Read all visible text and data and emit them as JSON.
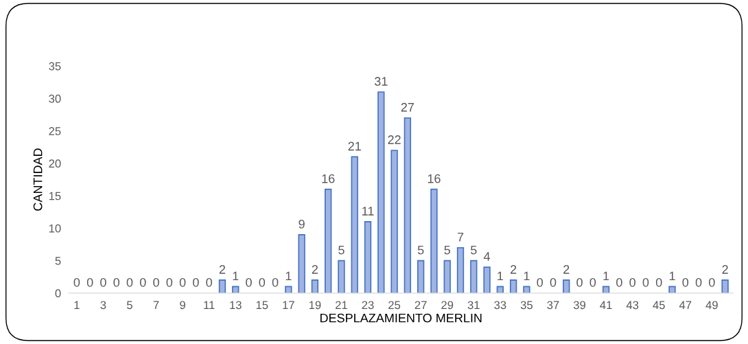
{
  "chart_data": {
    "type": "bar",
    "xlabel": "DESPLAZAMIENTO MERLIN",
    "ylabel": "CANTIDAD",
    "categories": [
      "1",
      null,
      "3",
      null,
      "5",
      null,
      "7",
      null,
      "9",
      null,
      "11",
      null,
      "13",
      null,
      "15",
      null,
      "17",
      null,
      "19",
      null,
      "21",
      null,
      "23",
      null,
      "25",
      null,
      "27",
      null,
      "29",
      null,
      "31",
      null,
      "33",
      null,
      "35",
      null,
      "37",
      null,
      "39",
      null,
      "41",
      null,
      "43",
      null,
      "45",
      null,
      "47",
      null,
      "49",
      null
    ],
    "values": [
      0,
      0,
      0,
      0,
      0,
      0,
      0,
      0,
      0,
      0,
      0,
      2,
      1,
      0,
      0,
      0,
      1,
      9,
      2,
      16,
      5,
      21,
      11,
      31,
      22,
      27,
      5,
      16,
      5,
      7,
      5,
      4,
      1,
      2,
      1,
      0,
      0,
      2,
      0,
      0,
      1,
      0,
      0,
      0,
      0,
      1,
      0,
      0,
      0,
      2
    ],
    "color": "#9fb4e3",
    "ylim": [
      0,
      35
    ],
    "yticks": [
      0,
      5,
      10,
      15,
      20,
      25,
      30,
      35
    ],
    "grid": false,
    "data_labels": true
  }
}
